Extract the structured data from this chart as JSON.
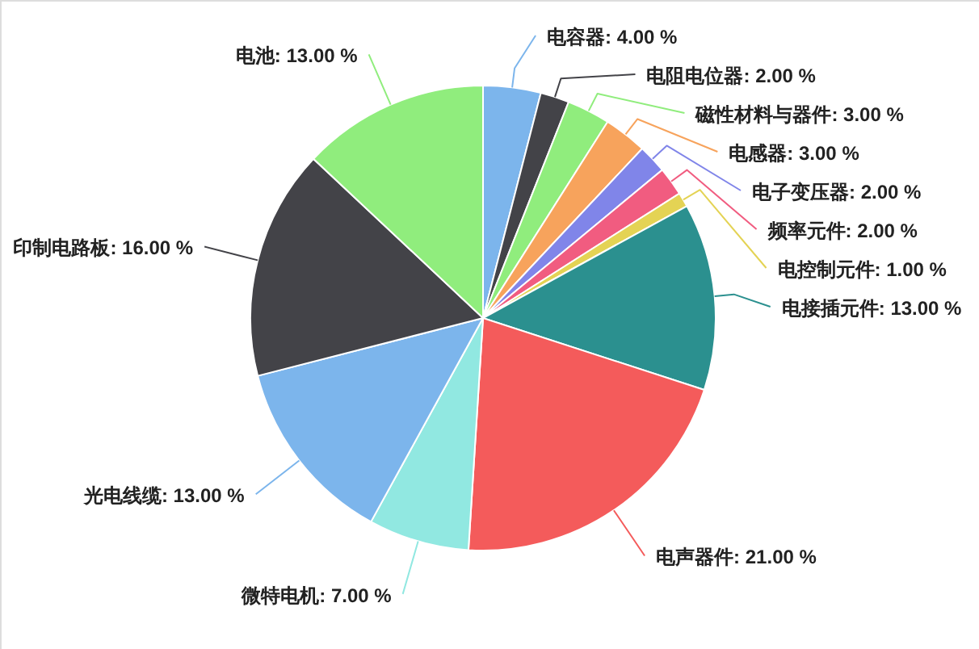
{
  "chart_data": {
    "type": "pie",
    "categories": [
      "电容器",
      "电阻电位器",
      "磁性材料与器件",
      "电感器",
      "电子变压器",
      "频率元件",
      "电控制元件",
      "电接插元件",
      "电声器件",
      "微特电机",
      "光电线缆",
      "印制电路板",
      "电池"
    ],
    "values": [
      4,
      2,
      3,
      3,
      2,
      2,
      1,
      13,
      21,
      7,
      13,
      16,
      13
    ],
    "colors": [
      "#7cb5ec",
      "#434348",
      "#90ed7d",
      "#f7a35c",
      "#8085e9",
      "#f15c80",
      "#e4d354",
      "#2b908f",
      "#f45b5b",
      "#91e8e1",
      "#7cb5ec",
      "#434348",
      "#90ed7d"
    ],
    "value_labels": [
      "4.00 %",
      "2.00 %",
      "3.00 %",
      "3.00 %",
      "2.00 %",
      "2.00 %",
      "1.00 %",
      "13.00 %",
      "21.00 %",
      "7.00 %",
      "13.00 %",
      "16.00 %",
      "13.00 %"
    ],
    "legend": false
  }
}
